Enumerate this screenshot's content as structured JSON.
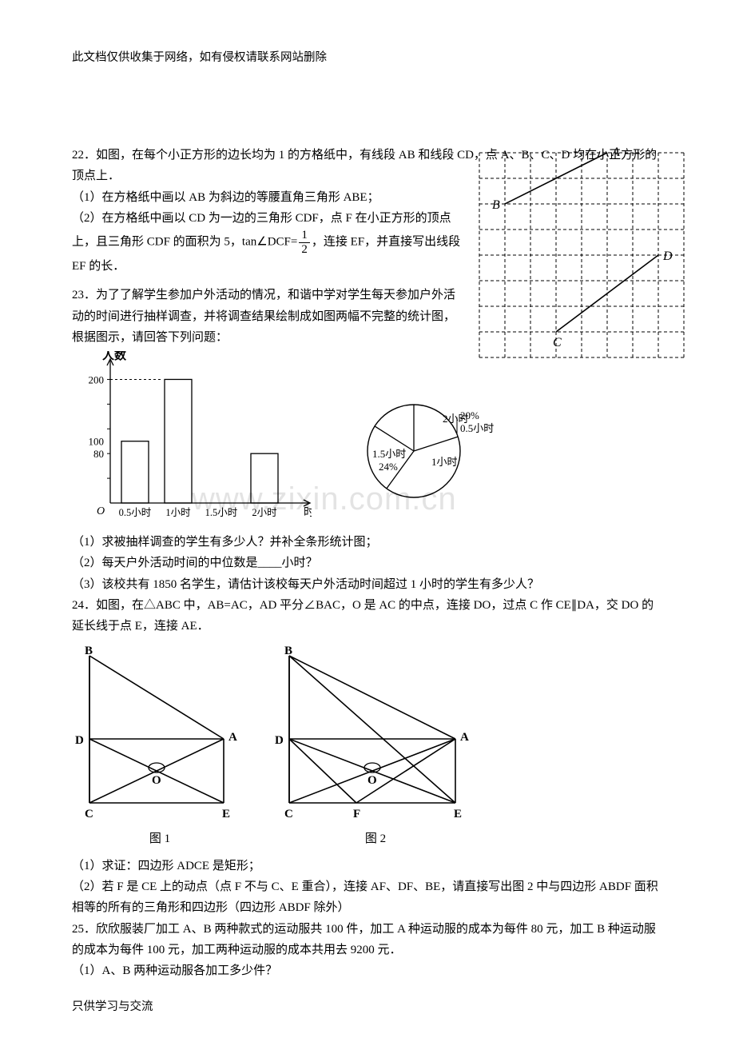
{
  "header": "此文档仅供收集于网络，如有侵权请联系网站删除",
  "footer": "只供学习与交流",
  "q22": {
    "stem_a": "22．如图，在每个小正方形的边长均为 1 的方格纸中，有线段 AB 和线段 CD，点 A、B、C、D 均在小正方形的顶点上．",
    "p1": "（1）在方格纸中画以 AB 为斜边的等腰直角三角形 ABE；",
    "p2a": "（2）在方格纸中画以 CD 为一边的三角形 CDF，点 F 在小正方形的顶点上，且三角形 CDF 的面积为 5，tan∠DCF=",
    "p2b": "，连接 EF，并直接写出线段 EF 的长．",
    "frac_num": "1",
    "frac_den": "2"
  },
  "q23": {
    "stem": "23．为了了解学生参加户外活动的情况，和谐中学对学生每天参加户外活动的时间进行抽样调查，并将调查结果绘制成如图两幅不完整的统计图，根据图示，请回答下列问题：",
    "p1": "（1）求被抽样调查的学生有多少人？并补全条形统计图；",
    "p2": "（2）每天户外活动时间的中位数是____小时？",
    "p3": "（3）该校共有 1850 名学生，请估计该校每天户外活动时间超过 1 小时的学生有多少人？",
    "bar": {
      "y_label": "人数",
      "x_label": "时间",
      "y_ticks": [
        0,
        80,
        100,
        200
      ],
      "categories": [
        "0.5小时",
        "1小时",
        "1.5小时",
        "2小时"
      ],
      "values": [
        100,
        200,
        null,
        80
      ],
      "axis_color": "#000000"
    },
    "pie": {
      "slices": [
        {
          "label": "20%\n0.5小时",
          "angle": 72
        },
        {
          "label": "1小时",
          "angle": 144
        },
        {
          "label": "1.5小时\n24%",
          "angle": 86.4
        },
        {
          "label": "2小时",
          "angle": 57.6
        }
      ],
      "stroke": "#000000"
    }
  },
  "q24": {
    "stem": "24．如图，在△ABC 中，AB=AC，AD 平分∠BAC，O 是 AC 的中点，连接 DO，过点 C 作 CE∥DA，交 DO 的延长线于点 E，连接 AE．",
    "cap1": "图 1",
    "cap2": "图 2",
    "p1": "（1）求证：四边形 ADCE 是矩形；",
    "p2": "（2）若 F 是 CE 上的动点（点 F 不与 C、E 重合），连接 AF、DF、BE，请直接写出图 2 中与四边形 ABDF 面积相等的所有的三角形和四边形（四边形 ABDF 除外）"
  },
  "q25": {
    "stem": "25．欣欣服装厂加工 A、B 两种款式的运动服共 100 件，加工 A 种运动服的成本为每件 80 元，加工 B 种运动服的成本为每件 100 元，加工两种运动服的成本共用去 9200 元．",
    "p1": "（1）A、B 两种运动服各加工多少件？"
  },
  "watermark": "www.zixin.com.cn",
  "grid": {
    "cols": 8,
    "rows": 8,
    "cell": 32,
    "A": {
      "c": 5,
      "r": 0,
      "label": "A"
    },
    "B": {
      "c": 1,
      "r": 2,
      "label": "B"
    },
    "C": {
      "c": 3,
      "r": 7,
      "label": "C"
    },
    "D": {
      "c": 7,
      "r": 4,
      "label": "D"
    },
    "dash_color": "#000000"
  },
  "geom": {
    "stroke": "#000000",
    "labels1": [
      "B",
      "D",
      "C",
      "O",
      "A",
      "E"
    ],
    "labels2": [
      "B",
      "D",
      "C",
      "F",
      "O",
      "A",
      "E"
    ]
  }
}
